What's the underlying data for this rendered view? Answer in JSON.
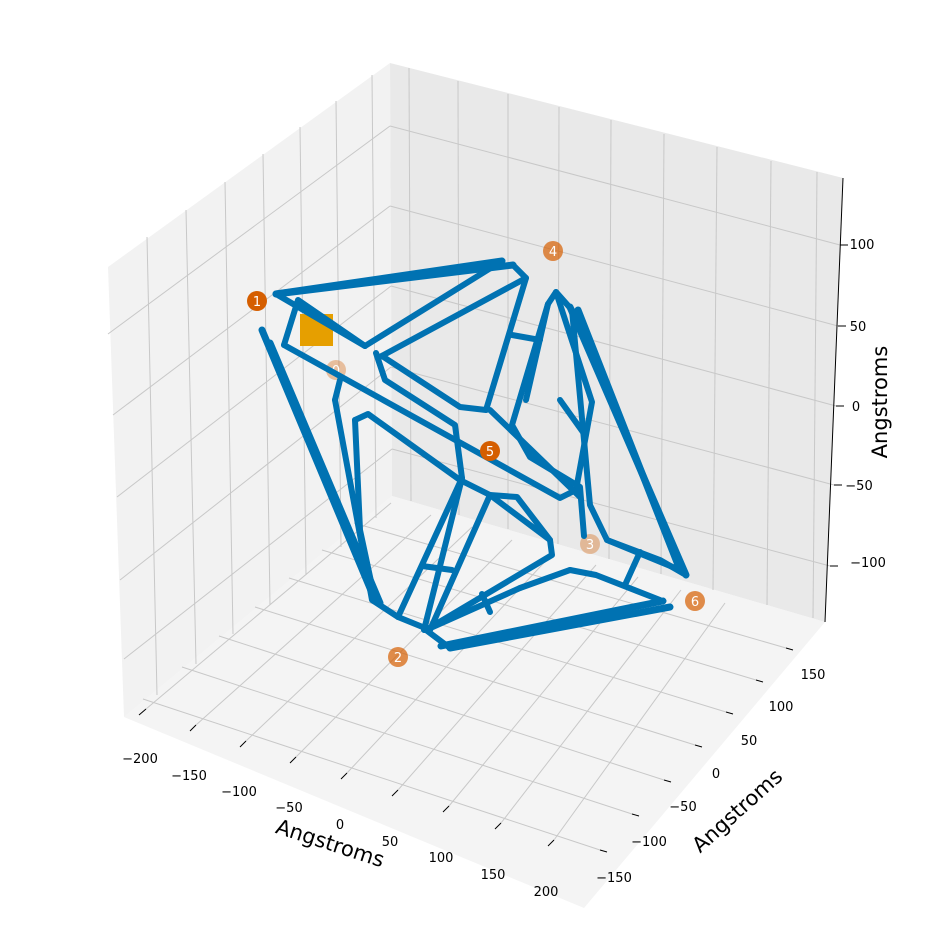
{
  "chart_data": {
    "type": "line3d",
    "title": "",
    "xlabel": "Angstroms",
    "ylabel": "Angstroms",
    "zlabel": "Angstroms",
    "x_ticks": [
      "−200",
      "−150",
      "−100",
      "−50",
      "0",
      "50",
      "100",
      "150",
      "200"
    ],
    "y_ticks": [
      "−150",
      "−100",
      "−50",
      "0",
      "50",
      "100",
      "150"
    ],
    "z_ticks": [
      "−100",
      "−50",
      "0",
      "50",
      "100"
    ],
    "grid": true,
    "edge_color": "#0072b2",
    "marker_color": "#e69f00",
    "vertex_color": "#d55e00",
    "vertex_labels": [
      "0",
      "1",
      "2",
      "3",
      "4",
      "5",
      "6"
    ]
  }
}
